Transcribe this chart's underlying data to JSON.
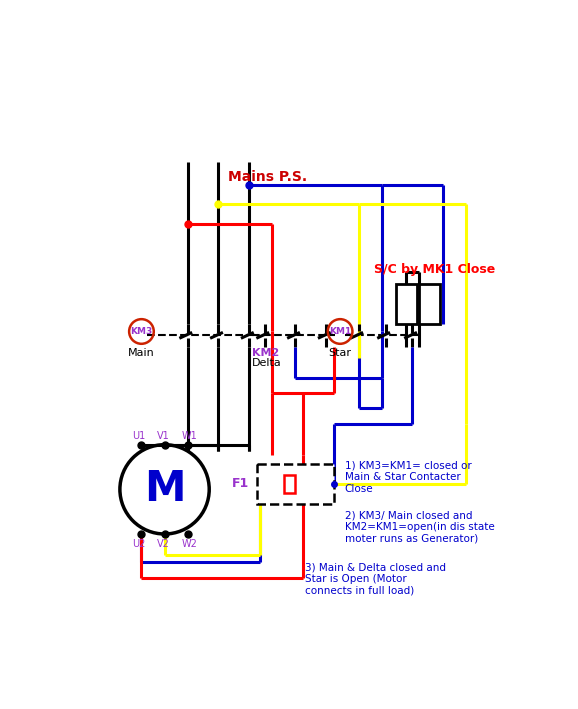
{
  "bg_color": "#ffffff",
  "mains_label": "Mains P.S.",
  "sc_label": "S/C by MK1 Close",
  "km3_label": "KM3",
  "km2_label": "KM2",
  "km1_label": "KM1",
  "main_label": "Main",
  "delta_label": "Delta",
  "star_label": "Star",
  "motor_label": "M",
  "f1_label": "F1",
  "note1": "1) KM3=KM1= closed or\nMain & Star Contacter\nClose",
  "note2": "2) KM3/ Main closed and\nKM2=KM1=open(in dis state\nmoter runs as Generator)",
  "note3": "3) Main & Delta closed and\nStar is Open (Motor\nconnects in full load)",
  "colors": {
    "black": "#000000",
    "red": "#ff0000",
    "blue": "#0000cc",
    "yellow": "#ffff00",
    "dark_red": "#cc0000",
    "sc_red": "#ff0000",
    "note_blue": "#0000cc",
    "km_purple": "#9933cc",
    "circle_red": "#cc2200"
  }
}
